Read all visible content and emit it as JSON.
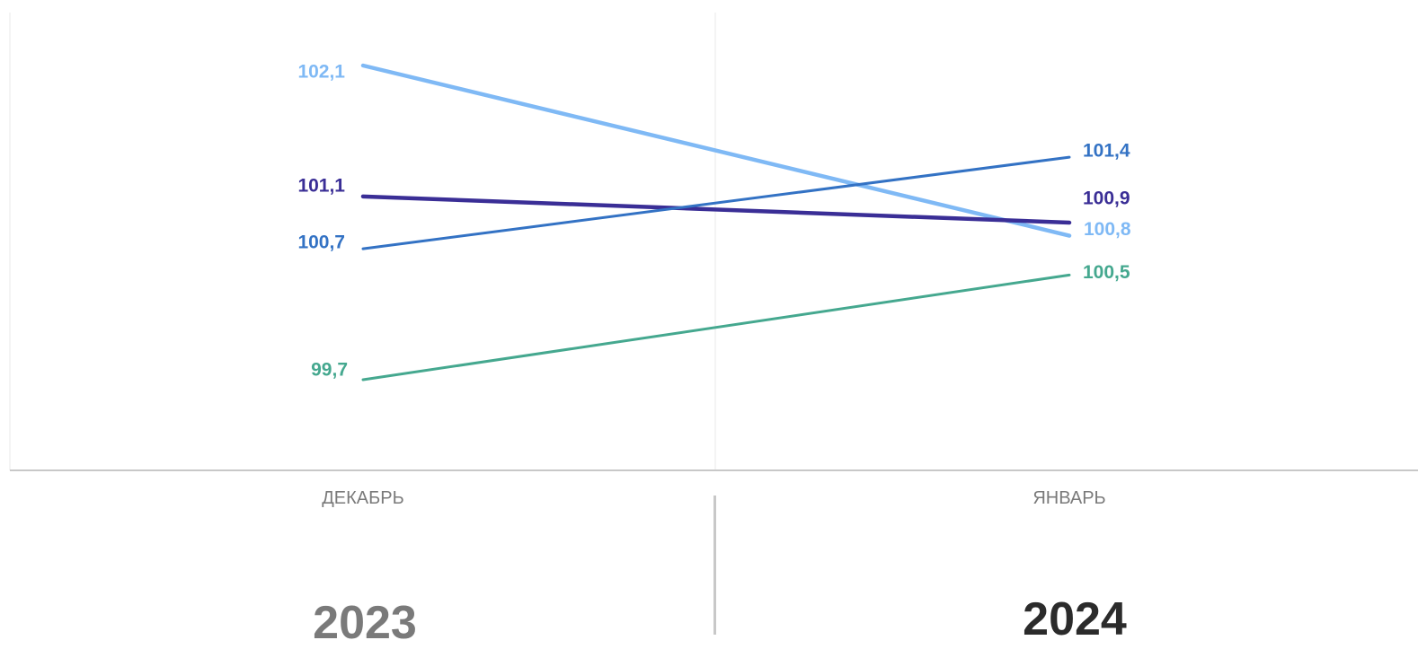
{
  "chart_data": {
    "type": "line",
    "categories": [
      "ДЕКАБРЬ",
      "ЯНВАРЬ"
    ],
    "ylim": [
      99.2,
      102.5
    ],
    "grid": false,
    "legend": "none",
    "series": [
      {
        "values": [
          102.1,
          100.8
        ],
        "labels": [
          "102,1",
          "100,8"
        ],
        "color": "#7fb9f5"
      },
      {
        "values": [
          101.1,
          100.9
        ],
        "labels": [
          "101,1",
          "100,9"
        ],
        "color": "#3a2e96"
      },
      {
        "values": [
          100.7,
          101.4
        ],
        "labels": [
          "100,7",
          "101,4"
        ],
        "color": "#3372c4"
      },
      {
        "values": [
          99.7,
          100.5
        ],
        "labels": [
          "99,7",
          "100,5"
        ],
        "color": "#45a88f"
      }
    ]
  },
  "years": [
    {
      "label": "2023",
      "color": "#7a7a7a"
    },
    {
      "label": "2024",
      "color": "#2b2b2b"
    }
  ]
}
